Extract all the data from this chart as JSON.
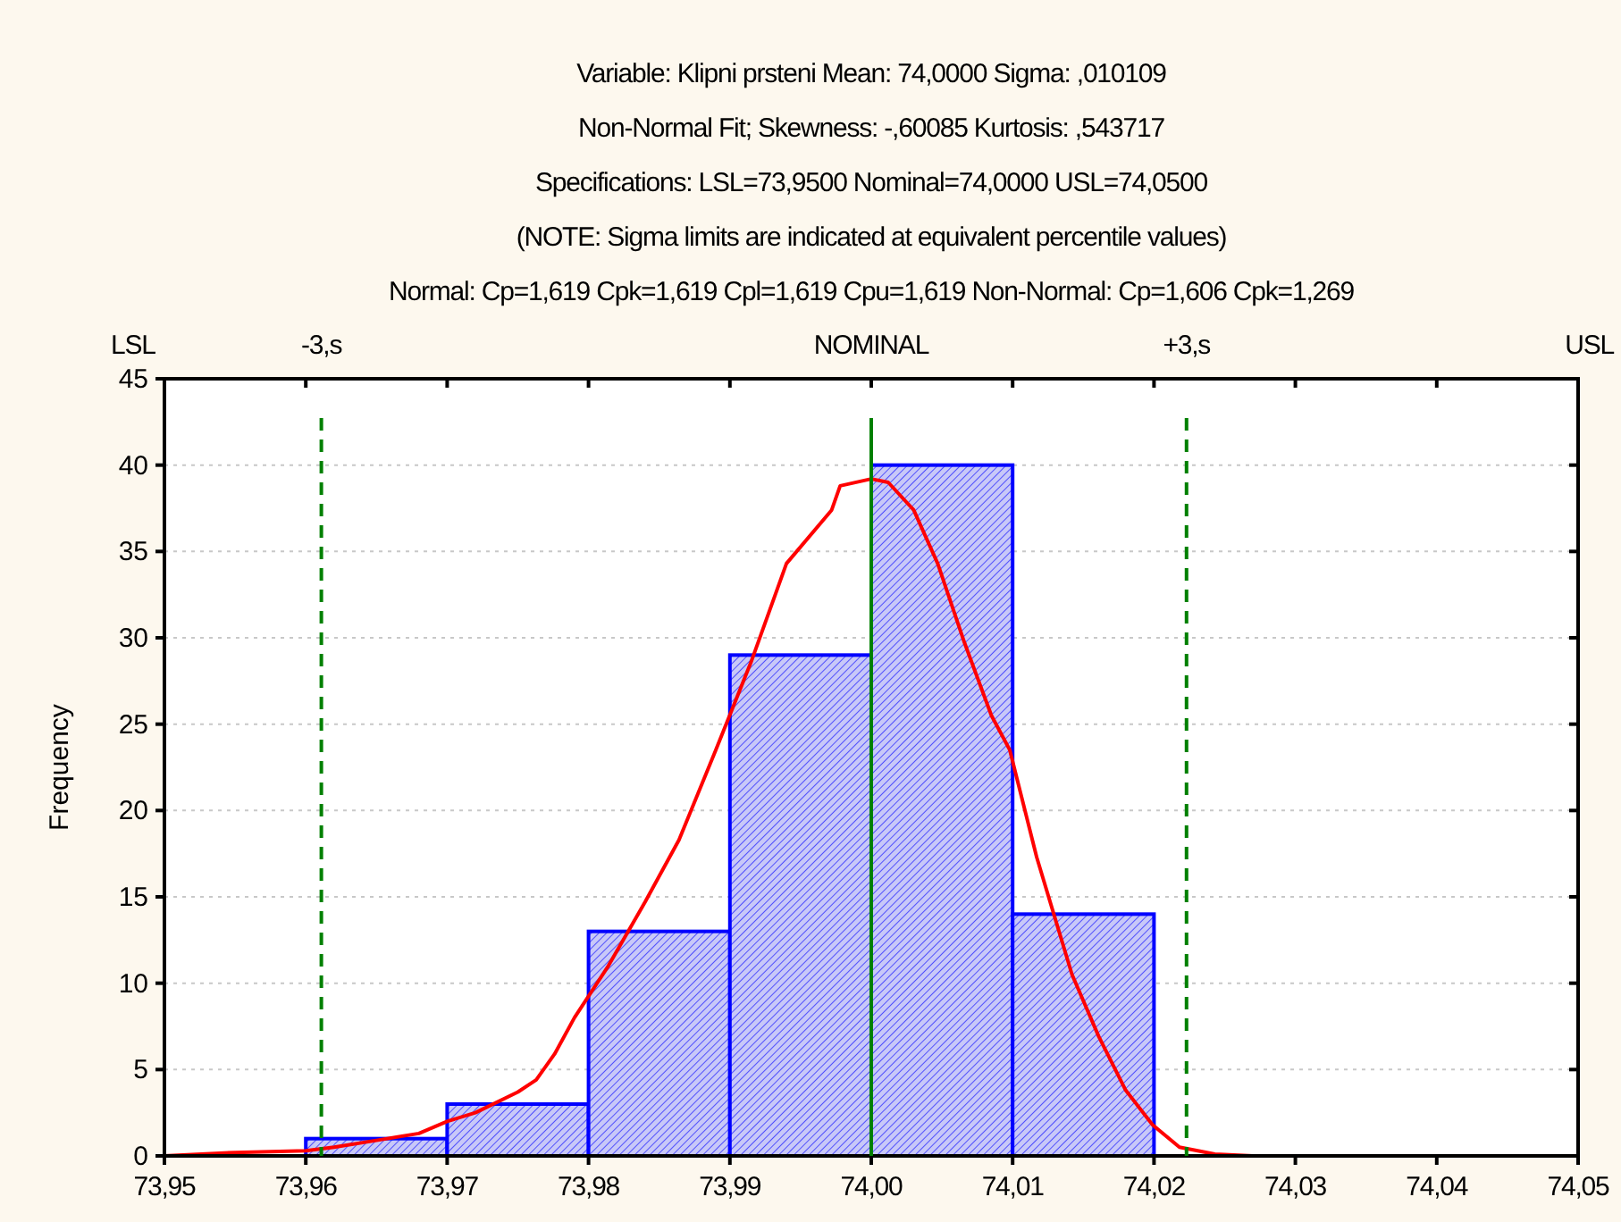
{
  "chart_data": {
    "type": "histogram",
    "title": "Variable: Klipni prsteni   Mean: 74,0000   Sigma: ,010109",
    "annotations": [
      "LSL",
      "USL",
      "Non-Normal Fit; Skewness: -,60085        Kurtosis: ,543717",
      "Specifications: LSL=73,9500 Nominal=74,0000 USL=74,0500",
      "(NOTE: Sigma limits are indicated at equivalent percentile values)",
      "Normal: Cp=1,619 Cpk=1,619 Cpl=1,619 Cpu=1,619 Non-Normal: Cp=1,606 Cpk=1,269"
    ],
    "ylabel": "Frequency",
    "bins": [
      73.96,
      73.97,
      73.98,
      73.99,
      74.0,
      74.01,
      74.02
    ],
    "values": [
      1,
      3,
      13,
      29,
      40,
      14
    ],
    "color": "#0000ff",
    "series": [
      {
        "type": "line",
        "color": "#ff0000",
        "x": [
          73.95,
          73.955,
          73.96,
          73.962,
          73.965,
          73.968,
          73.97,
          73.972,
          73.975,
          73.9763,
          73.9776,
          73.979,
          73.9814,
          73.984,
          73.9864,
          73.989,
          73.9915,
          73.994,
          73.9972,
          73.9978,
          74.0,
          74.0012,
          74.003,
          74.0047,
          74.0066,
          74.0085,
          74.0098,
          74.0117,
          74.0142,
          74.0161,
          74.018,
          74.0199,
          74.0218,
          74.0243,
          74.027
        ],
        "values": [
          0,
          0.2,
          0.3,
          0.5,
          0.9,
          1.3,
          2,
          2.5,
          3.7,
          4.4,
          5.9,
          8,
          11,
          14.7,
          18.3,
          23.5,
          28.6,
          34.3,
          37.4,
          38.8,
          39.2,
          39,
          37.4,
          34.3,
          29.7,
          25.5,
          23.5,
          17.3,
          10.5,
          6.9,
          3.8,
          1.8,
          0.5,
          0.1,
          0
        ]
      }
    ],
    "ref_lines": [
      {
        "axis": "x",
        "value": 73.9611,
        "label": "-3,s",
        "color": "#008000",
        "line_style": "dashed"
      },
      {
        "axis": "x",
        "value": 74.0,
        "label": "NOMINAL",
        "color": "#008000",
        "line_style": "solid"
      },
      {
        "axis": "x",
        "value": 74.0223,
        "label": "+3,s",
        "color": "#008000",
        "line_style": "dashed"
      }
    ],
    "xlim": [
      73.95,
      74.05
    ],
    "xticks": [
      {
        "value": 73.95,
        "label": "73,95"
      },
      {
        "value": 73.96,
        "label": "73,96"
      },
      {
        "value": 73.97,
        "label": "73,97"
      },
      {
        "value": 73.98,
        "label": "73,98"
      },
      {
        "value": 73.99,
        "label": "73,99"
      },
      {
        "value": 74.0,
        "label": "74,00"
      },
      {
        "value": 74.01,
        "label": "74,01"
      },
      {
        "value": 74.02,
        "label": "74,02"
      },
      {
        "value": 74.03,
        "label": "74,03"
      },
      {
        "value": 74.04,
        "label": "74,04"
      },
      {
        "value": 74.05,
        "label": "74,05"
      }
    ],
    "ylim": [
      0,
      45
    ],
    "yticks": [
      0,
      5,
      10,
      15,
      20,
      25,
      30,
      35,
      40,
      45
    ],
    "grid": "y"
  }
}
